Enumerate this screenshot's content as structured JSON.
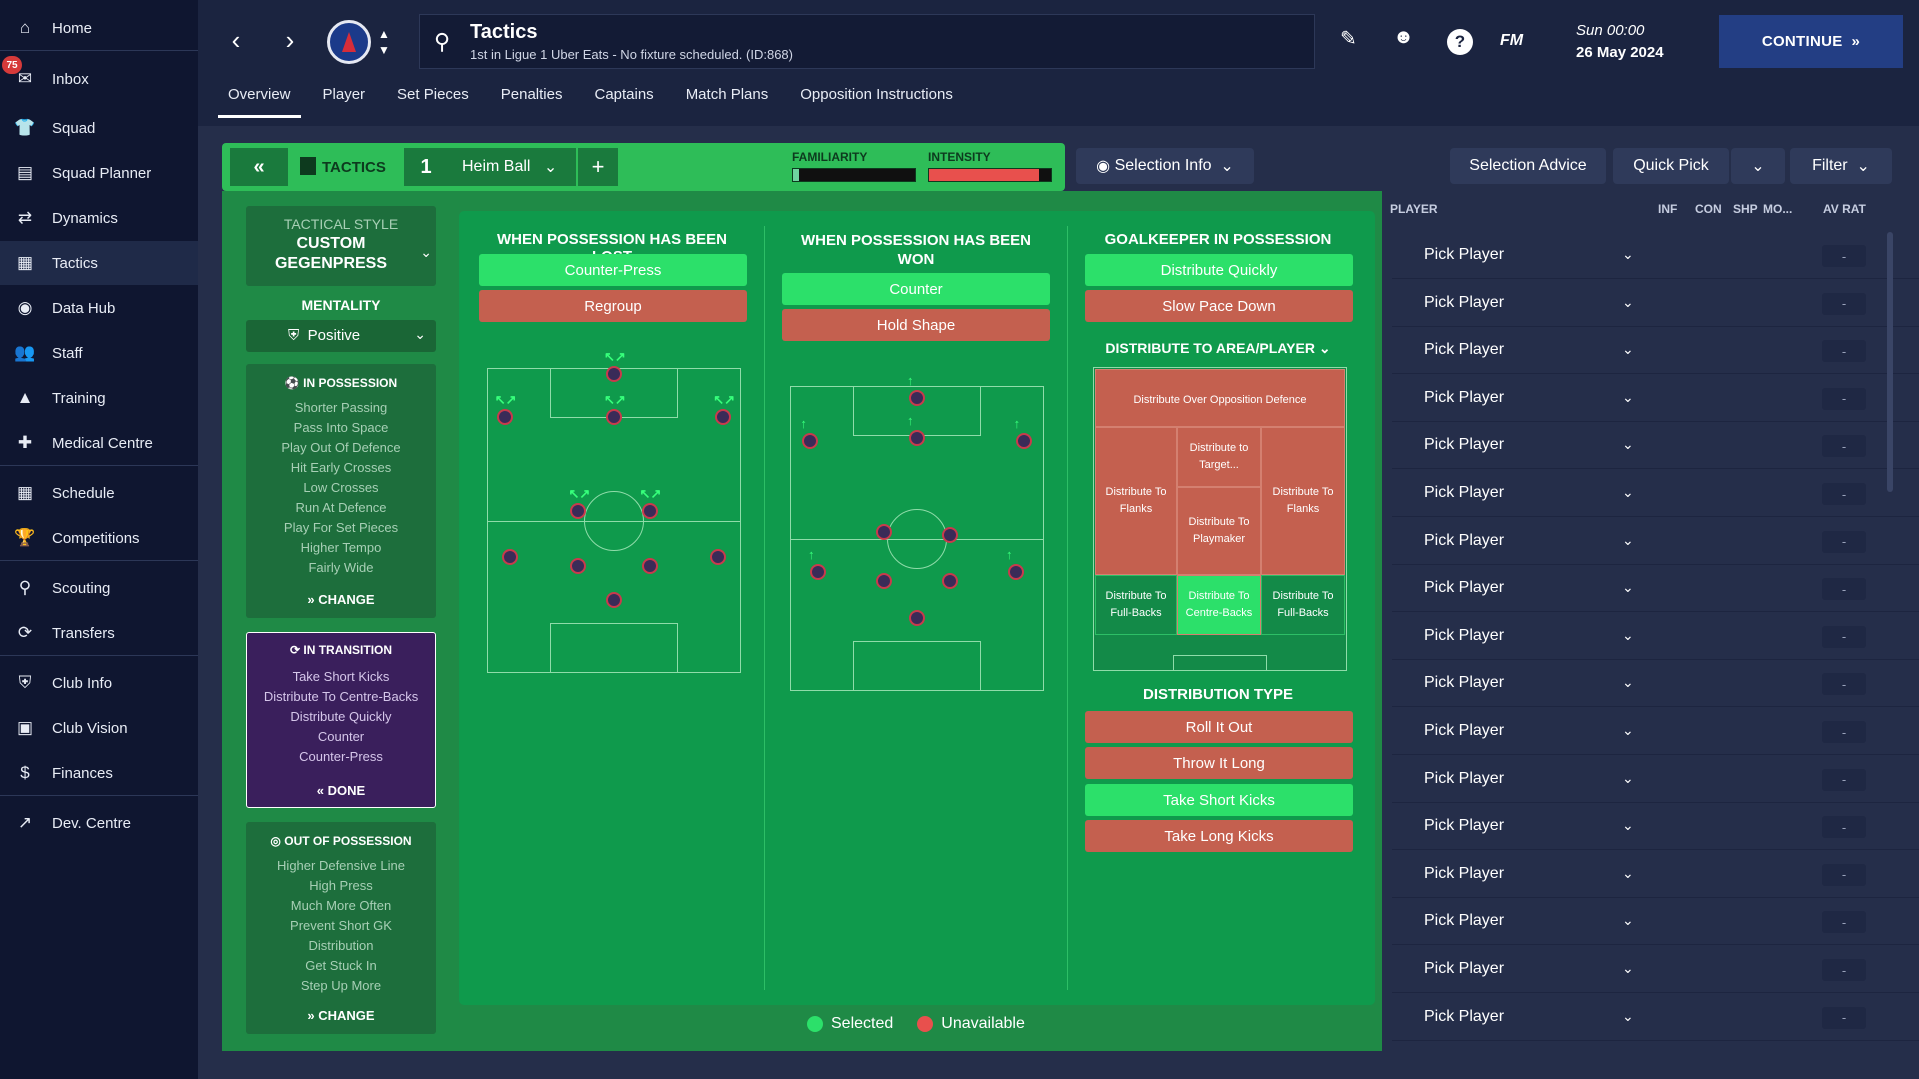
{
  "nav": {
    "items": [
      {
        "label": "Home",
        "icon": "home-icon",
        "glyph": "⌂"
      },
      {
        "label": "Inbox",
        "icon": "inbox-icon",
        "glyph": "✉"
      },
      {
        "label": "Squad",
        "icon": "shirt-icon",
        "glyph": "👕"
      },
      {
        "label": "Squad Planner",
        "icon": "clipboard-icon",
        "glyph": "▤"
      },
      {
        "label": "Dynamics",
        "icon": "dynamics-icon",
        "glyph": "⇄"
      },
      {
        "label": "Tactics",
        "icon": "tactics-board-icon",
        "glyph": "▦"
      },
      {
        "label": "Data Hub",
        "icon": "data-hub-icon",
        "glyph": "◉"
      },
      {
        "label": "Staff",
        "icon": "staff-icon",
        "glyph": "👥"
      },
      {
        "label": "Training",
        "icon": "training-icon",
        "glyph": "▲"
      },
      {
        "label": "Medical Centre",
        "icon": "medical-icon",
        "glyph": "✚"
      },
      {
        "label": "Schedule",
        "icon": "calendar-icon",
        "glyph": "▦"
      },
      {
        "label": "Competitions",
        "icon": "trophy-icon",
        "glyph": "🏆"
      },
      {
        "label": "Scouting",
        "icon": "search-icon",
        "glyph": "⚲"
      },
      {
        "label": "Transfers",
        "icon": "transfer-icon",
        "glyph": "⟳"
      },
      {
        "label": "Club Info",
        "icon": "shield-icon",
        "glyph": "⛨"
      },
      {
        "label": "Club Vision",
        "icon": "briefcase-icon",
        "glyph": "▣"
      },
      {
        "label": "Finances",
        "icon": "finances-icon",
        "glyph": "$"
      },
      {
        "label": "Dev. Centre",
        "icon": "development-icon",
        "glyph": "↗"
      }
    ],
    "inbox_badge": "75"
  },
  "header": {
    "title": "Tactics",
    "subtitle": "1st in Ligue 1 Uber Eats - No fixture scheduled. (ID:868)",
    "fm": "FM",
    "date_line1": "Sun 00:00",
    "date_line2": "26 May 2024",
    "continue_label": "CONTINUE"
  },
  "tabs": [
    "Overview",
    "Player",
    "Set Pieces",
    "Penalties",
    "Captains",
    "Match Plans",
    "Opposition Instructions"
  ],
  "tactics_bar": {
    "label": "TACTICS",
    "slot": "1",
    "name": "Heim Ball",
    "familiarity_label": "FAMILIARITY",
    "intensity_label": "INTENSITY",
    "familiarity": 0.05,
    "intensity": 0.9
  },
  "toolbar": {
    "selection_info": "Selection Info",
    "selection_advice": "Selection Advice",
    "quick_pick": "Quick Pick",
    "filter": "Filter"
  },
  "style": {
    "tactical_style_label": "TACTICAL STYLE",
    "tactical_style_value": "CUSTOM GEGENPRESS",
    "mentality_label": "MENTALITY",
    "mentality_value": "Positive"
  },
  "in_possession": {
    "title": "IN POSSESSION",
    "items": [
      "Shorter Passing",
      "Pass Into Space",
      "Play Out Of Defence",
      "Hit Early Crosses",
      "Low Crosses",
      "Run At Defence",
      "Play For Set Pieces",
      "Higher Tempo",
      "Fairly Wide"
    ],
    "action": "CHANGE"
  },
  "in_transition": {
    "title": "IN TRANSITION",
    "items": [
      "Take Short Kicks",
      "Distribute To Centre-Backs",
      "Distribute Quickly",
      "Counter",
      "Counter-Press"
    ],
    "action": "DONE"
  },
  "out_of_possession": {
    "title": "OUT OF POSSESSION",
    "items": [
      "Higher Defensive Line",
      "High Press",
      "Much More Often",
      "Prevent Short GK",
      "Distribution",
      "Get Stuck In",
      "Step Up More"
    ],
    "action": "CHANGE"
  },
  "lost": {
    "title": "WHEN POSSESSION HAS BEEN LOST",
    "options": [
      {
        "label": "Counter-Press",
        "state": "selected"
      },
      {
        "label": "Regroup",
        "state": "unavailable"
      }
    ]
  },
  "won": {
    "title_line1": "WHEN POSSESSION HAS BEEN",
    "title_line2": "WON",
    "options": [
      {
        "label": "Counter",
        "state": "selected"
      },
      {
        "label": "Hold Shape",
        "state": "unavailable"
      }
    ]
  },
  "gk": {
    "title": "GOALKEEPER IN POSSESSION",
    "options": [
      {
        "label": "Distribute Quickly",
        "state": "selected"
      },
      {
        "label": "Slow Pace Down",
        "state": "unavailable"
      }
    ],
    "area_title": "DISTRIBUTE TO AREA/PLAYER",
    "zones": {
      "over": "Distribute Over Opposition Defence",
      "target": "Distribute to Target...",
      "flanks_left": "Distribute To Flanks",
      "flanks_right": "Distribute To Flanks",
      "playmaker": "Distribute To Playmaker",
      "fb_left": "Distribute To Full-Backs",
      "cb": "Distribute To Centre-Backs",
      "fb_right": "Distribute To Full-Backs"
    },
    "type_title": "DISTRIBUTION TYPE",
    "types": [
      {
        "label": "Roll It Out",
        "state": "unavailable"
      },
      {
        "label": "Throw It Long",
        "state": "unavailable"
      },
      {
        "label": "Take Short Kicks",
        "state": "selected"
      },
      {
        "label": "Take Long Kicks",
        "state": "unavailable"
      }
    ]
  },
  "legend": {
    "selected": "Selected",
    "unavailable": "Unavailable"
  },
  "players_panel": {
    "headers": {
      "player": "PLAYER",
      "inf": "INF",
      "con": "CON",
      "shp": "SHP",
      "mo": "MO...",
      "avrat": "AV RAT"
    },
    "rows": [
      "Pick Player",
      "Pick Player",
      "Pick Player",
      "Pick Player",
      "Pick Player",
      "Pick Player",
      "Pick Player",
      "Pick Player",
      "Pick Player",
      "Pick Player",
      "Pick Player",
      "Pick Player",
      "Pick Player",
      "Pick Player",
      "Pick Player",
      "Pick Player",
      "Pick Player"
    ],
    "rating_placeholder": "-"
  },
  "colors": {
    "selected": "#2ce06a",
    "unavailable": "#c4604f",
    "accent": "#233e84",
    "pitch": "#0f9a4c"
  }
}
